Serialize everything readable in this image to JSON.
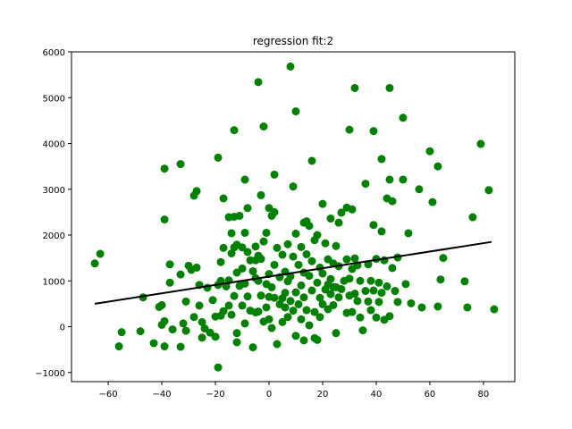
{
  "chart_data": {
    "type": "scatter",
    "title": "regression fit:2",
    "xlabel": "",
    "ylabel": "",
    "xlim": [
      -73.7,
      91.7
    ],
    "ylim": [
      -1200,
      6000
    ],
    "x_ticks": [
      -60,
      -40,
      -20,
      0,
      20,
      40,
      60,
      80
    ],
    "y_ticks": [
      -1000,
      0,
      1000,
      2000,
      3000,
      4000,
      5000,
      6000
    ],
    "grid": false,
    "legend": "none",
    "colors": {
      "points": "#008000",
      "fit_line": "#000000"
    },
    "series": [
      {
        "kind": "points",
        "points": [
          [
            -65,
            1380
          ],
          [
            -63,
            1590
          ],
          [
            -56,
            -430
          ],
          [
            -55,
            -120
          ],
          [
            -48,
            -100
          ],
          [
            -47,
            640
          ],
          [
            -43,
            -360
          ],
          [
            -41,
            430
          ],
          [
            -40,
            470
          ],
          [
            -40,
            40
          ],
          [
            -39,
            120
          ],
          [
            -39,
            -430
          ],
          [
            -39,
            3450
          ],
          [
            -39,
            2340
          ],
          [
            -37,
            1360
          ],
          [
            -37,
            960
          ],
          [
            -36,
            -60
          ],
          [
            -33,
            3550
          ],
          [
            -33,
            1140
          ],
          [
            -33,
            -440
          ],
          [
            -32,
            70
          ],
          [
            -31,
            550
          ],
          [
            -31,
            -90
          ],
          [
            -30,
            1330
          ],
          [
            -29,
            1240
          ],
          [
            -28,
            210
          ],
          [
            -28,
            2860
          ],
          [
            -27,
            1290
          ],
          [
            -27,
            2960
          ],
          [
            -26,
            910
          ],
          [
            -26,
            460
          ],
          [
            -25,
            -240
          ],
          [
            -25,
            100
          ],
          [
            -24,
            -40
          ],
          [
            -23,
            850
          ],
          [
            -22,
            -130
          ],
          [
            -21,
            580
          ],
          [
            -20,
            220
          ],
          [
            -20,
            -220
          ],
          [
            -19,
            3690
          ],
          [
            -19,
            910
          ],
          [
            -19,
            -890
          ],
          [
            -18,
            240
          ],
          [
            -18,
            1000
          ],
          [
            -18,
            1410
          ],
          [
            -17,
            2800
          ],
          [
            -17,
            1720
          ],
          [
            -17,
            340
          ],
          [
            -16,
            880
          ],
          [
            -15,
            2390
          ],
          [
            -15,
            1010
          ],
          [
            -15,
            460
          ],
          [
            -14,
            1600
          ],
          [
            -14,
            2040
          ],
          [
            -14,
            260
          ],
          [
            -13,
            4290
          ],
          [
            -13,
            2400
          ],
          [
            -13,
            1730
          ],
          [
            -13,
            670
          ],
          [
            -12,
            1180
          ],
          [
            -12,
            1790
          ],
          [
            -12,
            -340
          ],
          [
            -12,
            -140
          ],
          [
            -11,
            2420
          ],
          [
            -11,
            890
          ],
          [
            -10,
            1270
          ],
          [
            -10,
            1730
          ],
          [
            -10,
            460
          ],
          [
            -9,
            3210
          ],
          [
            -9,
            2050
          ],
          [
            -9,
            940
          ],
          [
            -9,
            70
          ],
          [
            -8,
            2590
          ],
          [
            -8,
            1630
          ],
          [
            -8,
            660
          ],
          [
            -7,
            1450
          ],
          [
            -7,
            350
          ],
          [
            -6,
            1210
          ],
          [
            -6,
            -450
          ],
          [
            -5,
            1060
          ],
          [
            -5,
            1450
          ],
          [
            -5,
            1750
          ],
          [
            -5,
            310
          ],
          [
            -4,
            1550
          ],
          [
            -4,
            5340
          ],
          [
            -4,
            1000
          ],
          [
            -4,
            330
          ],
          [
            -3,
            2870
          ],
          [
            -3,
            1480
          ],
          [
            -3,
            680
          ],
          [
            -2,
            4370
          ],
          [
            -2,
            1860
          ],
          [
            -2,
            110
          ],
          [
            -1,
            2050
          ],
          [
            -1,
            420
          ],
          [
            -1,
            930
          ],
          [
            0,
            2590
          ],
          [
            0,
            1150
          ],
          [
            0,
            650
          ],
          [
            0,
            160
          ],
          [
            1,
            2420
          ],
          [
            1,
            860
          ],
          [
            1,
            -30
          ],
          [
            2,
            3320
          ],
          [
            2,
            2500
          ],
          [
            2,
            1350
          ],
          [
            2,
            630
          ],
          [
            3,
            1720
          ],
          [
            3,
            -380
          ],
          [
            4,
            1080
          ],
          [
            4,
            490
          ],
          [
            5,
            1570
          ],
          [
            5,
            620
          ],
          [
            5,
            100
          ],
          [
            6,
            1200
          ],
          [
            6,
            740
          ],
          [
            6,
            420
          ],
          [
            7,
            1800
          ],
          [
            7,
            990
          ],
          [
            7,
            210
          ],
          [
            8,
            5680
          ],
          [
            8,
            1100
          ],
          [
            8,
            560
          ],
          [
            9,
            3060
          ],
          [
            9,
            1530
          ],
          [
            9,
            350
          ],
          [
            10,
            4700
          ],
          [
            10,
            2030
          ],
          [
            10,
            750
          ],
          [
            10,
            -200
          ],
          [
            11,
            1350
          ],
          [
            11,
            490
          ],
          [
            12,
            1740
          ],
          [
            12,
            900
          ],
          [
            12,
            160
          ],
          [
            13,
            2270
          ],
          [
            13,
            1180
          ],
          [
            13,
            640
          ],
          [
            13,
            -300
          ],
          [
            14,
            2300
          ],
          [
            14,
            1580
          ],
          [
            14,
            360
          ],
          [
            15,
            2200
          ],
          [
            15,
            1110
          ],
          [
            15,
            30
          ],
          [
            16,
            3620
          ],
          [
            16,
            1430
          ],
          [
            16,
            790
          ],
          [
            17,
            1890
          ],
          [
            17,
            320
          ],
          [
            17,
            -250
          ],
          [
            18,
            2000
          ],
          [
            18,
            960
          ],
          [
            18,
            -290
          ],
          [
            19,
            1290
          ],
          [
            19,
            630
          ],
          [
            19,
            210
          ],
          [
            20,
            2680
          ],
          [
            20,
            1160
          ],
          [
            20,
            490
          ],
          [
            21,
            1820
          ],
          [
            21,
            810
          ],
          [
            22,
            1470
          ],
          [
            22,
            920
          ],
          [
            22,
            380
          ],
          [
            23,
            2360
          ],
          [
            23,
            1040
          ],
          [
            23,
            710
          ],
          [
            24,
            1380
          ],
          [
            24,
            860
          ],
          [
            24,
            470
          ],
          [
            25,
            1760
          ],
          [
            25,
            860
          ],
          [
            25,
            -140
          ],
          [
            26,
            2270
          ],
          [
            26,
            1320
          ],
          [
            26,
            640
          ],
          [
            27,
            2490
          ],
          [
            27,
            820
          ],
          [
            28,
            1000
          ],
          [
            29,
            2600
          ],
          [
            29,
            1470
          ],
          [
            29,
            300
          ],
          [
            30,
            4300
          ],
          [
            30,
            1050
          ],
          [
            30,
            680
          ],
          [
            31,
            2560
          ],
          [
            31,
            1260
          ],
          [
            31,
            320
          ],
          [
            32,
            5210
          ],
          [
            32,
            1490
          ],
          [
            32,
            720
          ],
          [
            33,
            1340
          ],
          [
            33,
            560
          ],
          [
            34,
            1000
          ],
          [
            34,
            200
          ],
          [
            35,
            -80
          ],
          [
            36,
            3120
          ],
          [
            36,
            780
          ],
          [
            37,
            1360
          ],
          [
            37,
            550
          ],
          [
            38,
            1000
          ],
          [
            38,
            360
          ],
          [
            39,
            4270
          ],
          [
            39,
            2220
          ],
          [
            39,
            790
          ],
          [
            40,
            1480
          ],
          [
            40,
            200
          ],
          [
            41,
            960
          ],
          [
            41,
            540
          ],
          [
            42,
            3660
          ],
          [
            42,
            2080
          ],
          [
            42,
            740
          ],
          [
            43,
            1450
          ],
          [
            43,
            150
          ],
          [
            44,
            2800
          ],
          [
            44,
            880
          ],
          [
            45,
            5210
          ],
          [
            45,
            3210
          ],
          [
            45,
            230
          ],
          [
            46,
            2740
          ],
          [
            46,
            1280
          ],
          [
            47,
            780
          ],
          [
            48,
            1510
          ],
          [
            48,
            540
          ],
          [
            50,
            3210
          ],
          [
            50,
            4560
          ],
          [
            51,
            930
          ],
          [
            52,
            2040
          ],
          [
            53,
            510
          ],
          [
            56,
            3000
          ],
          [
            57,
            420
          ],
          [
            60,
            3830
          ],
          [
            61,
            2720
          ],
          [
            63,
            3500
          ],
          [
            63,
            440
          ],
          [
            64,
            1030
          ],
          [
            65,
            1500
          ],
          [
            73,
            990
          ],
          [
            74,
            420
          ],
          [
            76,
            2390
          ],
          [
            79,
            3990
          ],
          [
            82,
            2980
          ],
          [
            84,
            380
          ]
        ]
      },
      {
        "kind": "fit_line",
        "points": [
          [
            -65,
            500
          ],
          [
            83,
            1850
          ]
        ]
      }
    ]
  }
}
